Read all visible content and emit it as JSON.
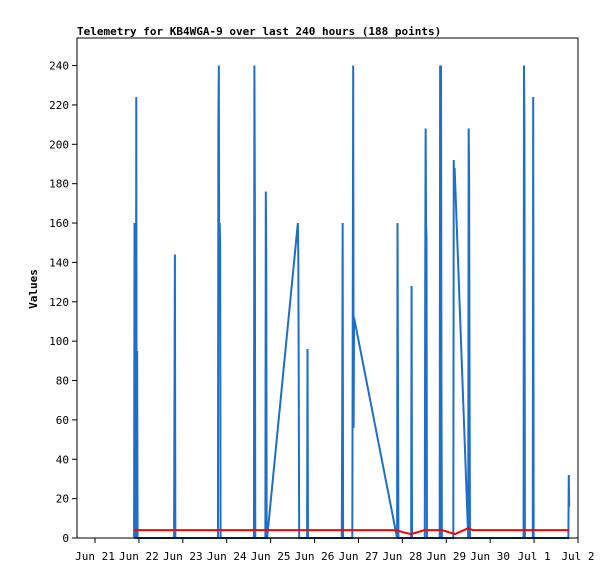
{
  "chart_data": {
    "type": "line",
    "title": "Telemetry for KB4WGA-9 over last 240 hours (188 points)",
    "ylabel": "Values",
    "xlabel": "",
    "ylim": [
      0,
      254
    ],
    "x_ticks": [
      "Jun 21",
      "Jun 22",
      "Jun 23",
      "Jun 24",
      "Jun 25",
      "Jun 26",
      "Jun 27",
      "Jun 28",
      "Jun 29",
      "Jun 30",
      "Jul 1",
      "Jul 2"
    ],
    "y_ticks": [
      0,
      20,
      40,
      60,
      80,
      100,
      120,
      140,
      160,
      180,
      200,
      220,
      240
    ],
    "grid": false,
    "colors": {
      "series1": "#1f6fc8",
      "series2": "#ff0000",
      "series3": "#000000"
    },
    "series": [
      {
        "x": [
          21.89,
          21.9,
          21.91,
          21.92,
          21.93,
          21.94,
          21.95,
          21.96,
          21.97,
          22.56,
          22.8,
          22.81,
          22.82,
          22.83,
          23.8,
          23.81,
          23.82,
          23.83,
          23.84,
          23.85,
          23.86,
          24.62,
          24.63,
          24.64,
          24.65,
          24.88,
          24.89,
          24.9,
          24.91,
          24.92,
          25.62,
          25.63,
          25.64,
          25.65,
          25.66,
          25.83,
          25.84,
          25.85,
          25.86,
          26.62,
          26.63,
          26.64,
          26.65,
          26.86,
          26.87,
          26.88,
          26.89,
          26.9,
          27.88,
          27.89,
          27.9,
          27.91,
          28.2,
          28.21,
          28.22,
          28.51,
          28.52,
          28.53,
          28.54,
          28.55,
          28.56,
          28.85,
          28.86,
          28.87,
          28.88,
          28.89,
          28.9,
          29.16,
          29.17,
          29.18,
          29.19,
          29.5,
          29.51,
          29.52,
          29.53,
          29.54,
          30.76,
          30.77,
          30.78,
          30.79,
          30.8,
          30.97,
          30.98,
          30.99,
          31.0,
          31.78,
          31.79,
          31.8
        ],
        "y": [
          0,
          160,
          0,
          160,
          0,
          224,
          0,
          95,
          0,
          0,
          0,
          72,
          144,
          0,
          0,
          208,
          240,
          120,
          160,
          148,
          0,
          0,
          240,
          176,
          0,
          0,
          176,
          144,
          0,
          0,
          160,
          144,
          80,
          0,
          0,
          0,
          96,
          0,
          0,
          0,
          64,
          160,
          0,
          0,
          112,
          240,
          56,
          112,
          0,
          160,
          80,
          0,
          0,
          128,
          0,
          0,
          128,
          208,
          160,
          152,
          0,
          0,
          240,
          0,
          240,
          80,
          0,
          0,
          192,
          180,
          188,
          0,
          208,
          184,
          80,
          0,
          0,
          240,
          208,
          0,
          0,
          0,
          224,
          0,
          0,
          0,
          32,
          16
        ]
      },
      {
        "x": [
          21.89,
          27.87,
          28.0,
          28.2,
          28.5,
          28.9,
          29.2,
          29.5,
          29.6,
          31.8
        ],
        "y": [
          4,
          4,
          3,
          2,
          4,
          4,
          2,
          5,
          4,
          4
        ]
      },
      {
        "x": [
          21.89,
          31.8
        ],
        "y": [
          0,
          0
        ]
      }
    ]
  }
}
